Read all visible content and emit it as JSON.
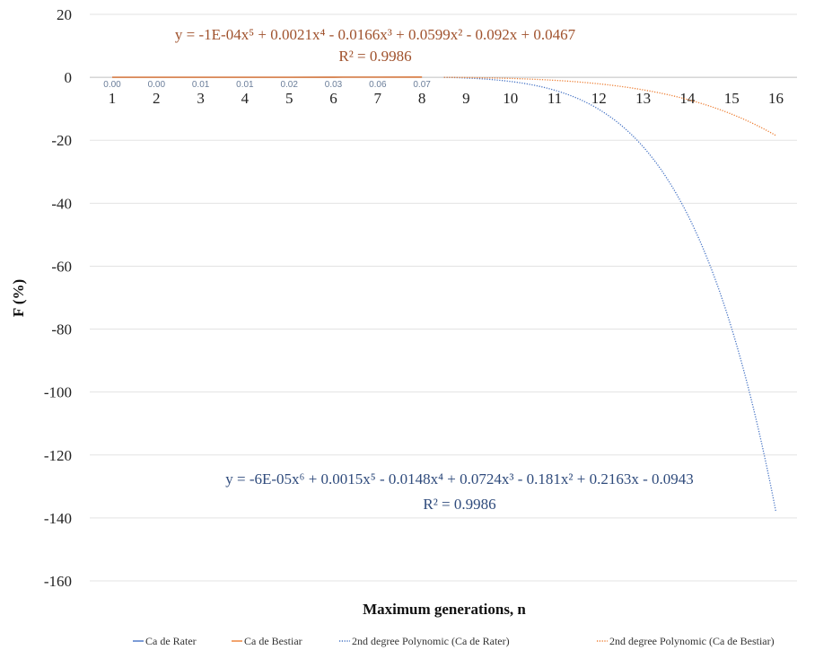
{
  "chart_data": {
    "type": "line",
    "title": "",
    "xlabel": "Maximum generations, n",
    "ylabel": "F (%)",
    "ylim": [
      -160,
      20
    ],
    "yticks": [
      20,
      0,
      -20,
      -40,
      -60,
      -80,
      -100,
      -120,
      -140,
      -160
    ],
    "x": [
      1,
      2,
      3,
      4,
      5,
      6,
      7,
      8,
      9,
      10,
      11,
      12,
      13,
      14,
      15,
      16
    ],
    "grid": "horizontal",
    "legend_position": "bottom",
    "series": [
      {
        "name": "Ca de Rater",
        "color": "#4472c4",
        "style": "solid",
        "x": [
          1,
          2,
          3,
          4,
          5,
          6,
          7,
          8
        ],
        "values": [
          0.0,
          0.0,
          0.01,
          0.01,
          0.02,
          0.03,
          0.06,
          0.07
        ]
      },
      {
        "name": "Ca de Bestiar",
        "color": "#ed7d31",
        "style": "solid",
        "x": [
          1,
          2,
          3,
          4,
          5,
          6,
          7,
          8
        ],
        "values": [
          0.0,
          0.0,
          0.01,
          0.01,
          0.02,
          0.03,
          0.06,
          0.07
        ]
      }
    ],
    "data_labels": [
      "0.00",
      "0.00",
      "0.01",
      "0.01",
      "0.02",
      "0.03",
      "0.06",
      "0.07"
    ],
    "trendlines": [
      {
        "name": "2nd degree Polynomic  (Ca de Rater)",
        "color": "#4472c4",
        "style": "dotted",
        "coefficients": [
          -0.0943,
          0.2163,
          -0.181,
          0.0724,
          -0.0148,
          0.0015,
          -6e-05
        ],
        "x_start": 8.5,
        "x_end": 16,
        "y_end": -138,
        "equation": "y = -6E-05x⁶ + 0.0015x⁵ - 0.0148x⁴ + 0.0724x³ - 0.181x² + 0.2163x - 0.0943",
        "r2": "R² = 0.9986",
        "label_color": "#2f4b7c"
      },
      {
        "name": "2nd degree Polynomic  (Ca de Bestiar)",
        "color": "#ed7d31",
        "style": "dotted",
        "coefficients": [
          0.0467,
          -0.092,
          0.0599,
          -0.0166,
          0.0021,
          -0.0001
        ],
        "x_start": 8.5,
        "x_end": 16,
        "y_end": -18.5,
        "equation": "y = -1E-04x⁵ + 0.0021x⁴ - 0.0166x³ + 0.0599x² - 0.092x + 0.0467",
        "r2": "R² = 0.9986",
        "label_color": "#a0522d"
      }
    ]
  }
}
